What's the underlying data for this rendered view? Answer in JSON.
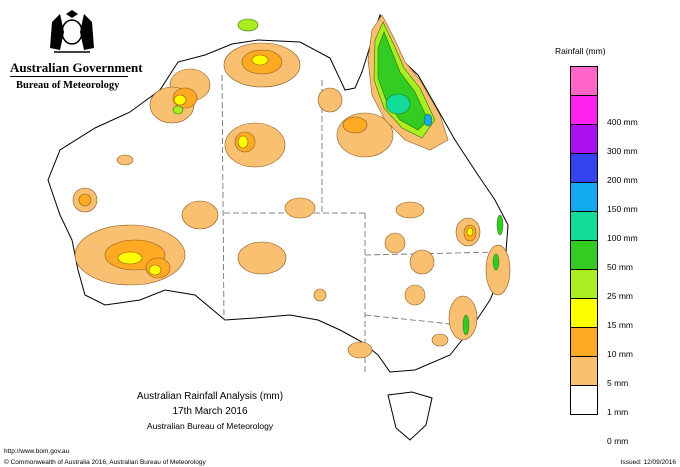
{
  "header": {
    "government": "Australian Government",
    "bureau": "Bureau of Meteorology"
  },
  "legend": {
    "title": "Rainfall (mm)",
    "items": [
      {
        "label": "",
        "color": "#ff66c6"
      },
      {
        "label": "400 mm",
        "color": "#ff22ee"
      },
      {
        "label": "300 mm",
        "color": "#aa11ee"
      },
      {
        "label": "200 mm",
        "color": "#3344ee"
      },
      {
        "label": "150 mm",
        "color": "#11aaee"
      },
      {
        "label": "100 mm",
        "color": "#11dd99"
      },
      {
        "label": "50 mm",
        "color": "#33cc22"
      },
      {
        "label": "25 mm",
        "color": "#aaee22"
      },
      {
        "label": "15 mm",
        "color": "#ffff00"
      },
      {
        "label": "10 mm",
        "color": "#ffaa22"
      },
      {
        "label": "5 mm",
        "color": "#f8c070"
      },
      {
        "label": "1 mm",
        "color": "#ffffff"
      },
      {
        "label": "0 mm",
        "color": null
      }
    ]
  },
  "caption": {
    "title": "Australian Rainfall Analysis (mm)",
    "date": "17th March 2016",
    "agency": "Australian Bureau of Meteorology"
  },
  "footer": {
    "url": "http://www.bom.gov.au",
    "copyright": "© Commonwealth of Australia 2016, Australian Bureau of Meteorology",
    "issued": "Issued: 12/09/2016"
  }
}
